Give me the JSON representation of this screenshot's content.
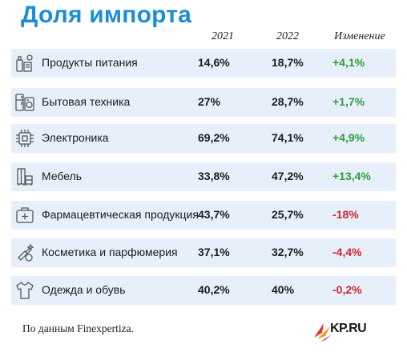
{
  "chart_data": {
    "type": "table",
    "title": "Доля импорта",
    "columns": [
      "2021",
      "2022",
      "Изменение"
    ],
    "rows": [
      {
        "category": "Продукты питания",
        "icon": "food-icon",
        "y2021": "14,6%",
        "y2022": "18,7%",
        "change": "+4,1%"
      },
      {
        "category": "Бытовая техника",
        "icon": "appliances-icon",
        "y2021": "27%",
        "y2022": "28,7%",
        "change": "+1,7%"
      },
      {
        "category": "Электроника",
        "icon": "chip-icon",
        "y2021": "69,2%",
        "y2022": "74,1%",
        "change": "+4,9%"
      },
      {
        "category": "Мебель",
        "icon": "furniture-icon",
        "y2021": "33,8%",
        "y2022": "47,2%",
        "change": "+13,4%"
      },
      {
        "category": "Фармацевтическая продукция",
        "icon": "medkit-icon",
        "y2021": "43,7%",
        "y2022": "25,7%",
        "change": "-18%"
      },
      {
        "category": "Косметика и парфюмерия",
        "icon": "cosmetics-icon",
        "y2021": "37,1%",
        "y2022": "32,7%",
        "change": "-4,4%"
      },
      {
        "category": "Одежда и обувь",
        "icon": "tshirt-icon",
        "y2021": "40,2%",
        "y2022": "40%",
        "change": "-0,2%"
      }
    ]
  },
  "footer": {
    "source": "По данным Finexpertiza."
  },
  "logo": {
    "text": "KP.RU"
  },
  "colors": {
    "title": "#1f8cd6",
    "positive": "#2e9e3a",
    "negative": "#d0242b",
    "row_shade": "#e7f0fa"
  }
}
